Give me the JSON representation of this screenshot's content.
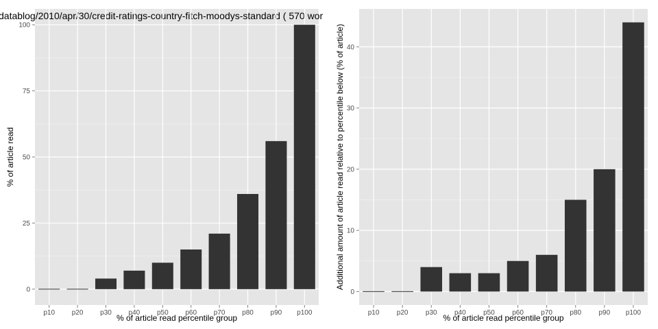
{
  "chart_data": [
    {
      "type": "bar",
      "title": "datablog/2010/apr/30/credit-ratings-country-fitch-moodys-standard ( 570 wor",
      "xlabel": "% of article read percentile group",
      "ylabel": "% of article read",
      "categories": [
        "p10",
        "p20",
        "p30",
        "p40",
        "p50",
        "p60",
        "p70",
        "p80",
        "p90",
        "p100"
      ],
      "values": [
        0,
        0,
        4,
        7,
        10,
        15,
        21,
        36,
        56,
        100
      ],
      "ylim": [
        -6,
        106
      ],
      "yticks": [
        0,
        25,
        50,
        75,
        100
      ],
      "ytick_labels": [
        "0",
        "25",
        "50",
        "75",
        "100"
      ],
      "grid": true
    },
    {
      "type": "bar",
      "title": "",
      "xlabel": "% of article read percentile group",
      "ylabel": "Additional amount of article read relative to percentile below (% of article)",
      "categories": [
        "p10",
        "p20",
        "p30",
        "p40",
        "p50",
        "p60",
        "p70",
        "p80",
        "p90",
        "p100"
      ],
      "values": [
        0,
        0,
        4,
        3,
        3,
        5,
        6,
        15,
        20,
        44
      ],
      "ylim": [
        -2.2,
        46.2
      ],
      "yticks": [
        0,
        10,
        20,
        30,
        40
      ],
      "ytick_labels": [
        "0",
        "10",
        "20",
        "30",
        "40"
      ],
      "grid": true
    }
  ],
  "colors": {
    "panel_bg": "#e5e5e5",
    "grid_major": "#ffffff",
    "grid_minor": "#f2f2f2",
    "bar": "#333333",
    "tick_text": "#4d4d4d"
  }
}
